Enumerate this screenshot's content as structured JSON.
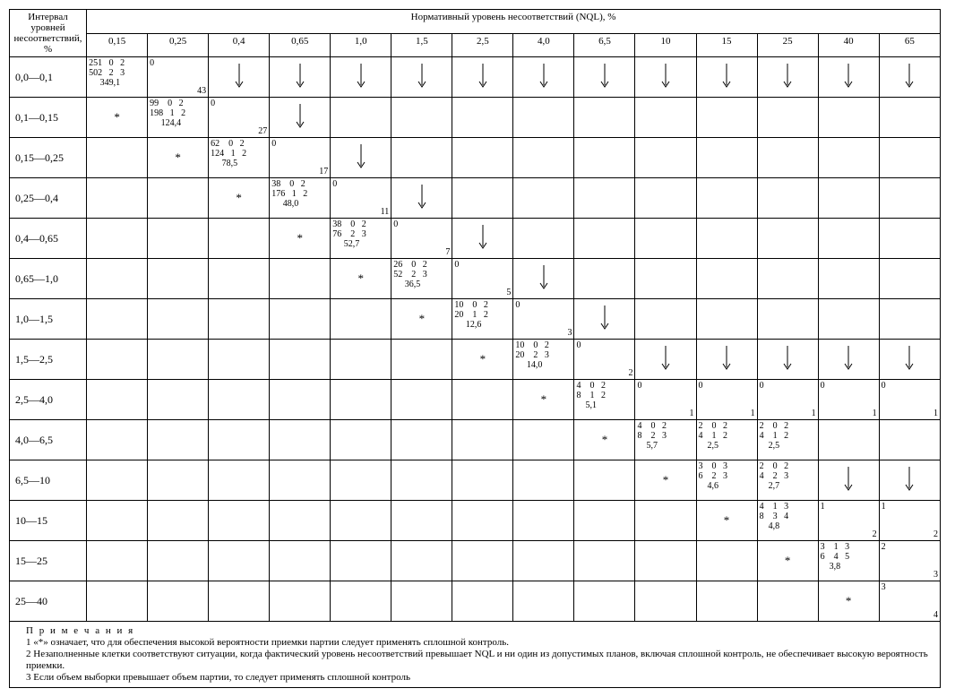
{
  "header": {
    "rowhead": "Интервал уровней несоответствий, %",
    "spanhead": "Нормативный   уровень  несоответствий  (NQL), %",
    "cols": [
      "0,15",
      "0,25",
      "0,4",
      "0,65",
      "1,0",
      "1,5",
      "2,5",
      "4,0",
      "6,5",
      "10",
      "15",
      "25",
      "40",
      "65"
    ]
  },
  "rows": [
    {
      "label": "0,0—0,1",
      "cells": [
        {
          "t": "block",
          "l1": "251   0   2",
          "l2": "502   2   3",
          "l3": "     349,1"
        },
        {
          "t": "zero_tr",
          "tr": "43"
        },
        {
          "t": "arr"
        },
        {
          "t": "arr"
        },
        {
          "t": "arr"
        },
        {
          "t": "arr"
        },
        {
          "t": "arr"
        },
        {
          "t": "arr"
        },
        {
          "t": "arr"
        },
        {
          "t": "arr"
        },
        {
          "t": "arr"
        },
        {
          "t": "arr"
        },
        {
          "t": "arr"
        },
        {
          "t": "arr"
        }
      ]
    },
    {
      "label": "0,1—0,15",
      "cells": [
        {
          "t": "star"
        },
        {
          "t": "block",
          "l1": "99    0   2",
          "l2": "198   1   2",
          "l3": "     124,4"
        },
        {
          "t": "zero_tr",
          "tr": "27"
        },
        {
          "t": "arr"
        },
        {
          "t": ""
        },
        {
          "t": ""
        },
        {
          "t": ""
        },
        {
          "t": ""
        },
        {
          "t": ""
        },
        {
          "t": ""
        },
        {
          "t": ""
        },
        {
          "t": ""
        },
        {
          "t": ""
        },
        {
          "t": ""
        }
      ]
    },
    {
      "label": "0,15—0,25",
      "cells": [
        {
          "t": ""
        },
        {
          "t": "star"
        },
        {
          "t": "block",
          "l1": "62    0   2",
          "l2": "124   1   2",
          "l3": "     78,5"
        },
        {
          "t": "zero_tr",
          "tr": "17"
        },
        {
          "t": "arr"
        },
        {
          "t": ""
        },
        {
          "t": ""
        },
        {
          "t": ""
        },
        {
          "t": ""
        },
        {
          "t": ""
        },
        {
          "t": ""
        },
        {
          "t": ""
        },
        {
          "t": ""
        },
        {
          "t": ""
        }
      ]
    },
    {
      "label": "0,25—0,4",
      "cells": [
        {
          "t": ""
        },
        {
          "t": ""
        },
        {
          "t": "star"
        },
        {
          "t": "block",
          "l1": "38    0   2",
          "l2": "176   1   2",
          "l3": "     48,0"
        },
        {
          "t": "zero_tr",
          "tr": "11"
        },
        {
          "t": "arr"
        },
        {
          "t": ""
        },
        {
          "t": ""
        },
        {
          "t": ""
        },
        {
          "t": ""
        },
        {
          "t": ""
        },
        {
          "t": ""
        },
        {
          "t": ""
        },
        {
          "t": ""
        }
      ]
    },
    {
      "label": "0,4—0,65",
      "cells": [
        {
          "t": ""
        },
        {
          "t": ""
        },
        {
          "t": ""
        },
        {
          "t": "star"
        },
        {
          "t": "block",
          "l1": "38    0   2",
          "l2": "76    2   3",
          "l3": "     52,7"
        },
        {
          "t": "zero_tr",
          "tr": "7"
        },
        {
          "t": "arr"
        },
        {
          "t": ""
        },
        {
          "t": ""
        },
        {
          "t": ""
        },
        {
          "t": ""
        },
        {
          "t": ""
        },
        {
          "t": ""
        },
        {
          "t": ""
        }
      ]
    },
    {
      "label": "0,65—1,0",
      "cells": [
        {
          "t": ""
        },
        {
          "t": ""
        },
        {
          "t": ""
        },
        {
          "t": ""
        },
        {
          "t": "star"
        },
        {
          "t": "block",
          "l1": "26    0   2",
          "l2": "52    2   3",
          "l3": "     36,5"
        },
        {
          "t": "zero_tr",
          "tr": "5"
        },
        {
          "t": "arr"
        },
        {
          "t": ""
        },
        {
          "t": ""
        },
        {
          "t": ""
        },
        {
          "t": ""
        },
        {
          "t": ""
        },
        {
          "t": ""
        }
      ]
    },
    {
      "label": "1,0—1,5",
      "cells": [
        {
          "t": ""
        },
        {
          "t": ""
        },
        {
          "t": ""
        },
        {
          "t": ""
        },
        {
          "t": ""
        },
        {
          "t": "star"
        },
        {
          "t": "block",
          "l1": "10    0   2",
          "l2": "20    1   2",
          "l3": "     12,6"
        },
        {
          "t": "zero_tr",
          "tr": "3"
        },
        {
          "t": "arr"
        },
        {
          "t": ""
        },
        {
          "t": ""
        },
        {
          "t": ""
        },
        {
          "t": ""
        },
        {
          "t": ""
        }
      ]
    },
    {
      "label": "1,5—2,5",
      "cells": [
        {
          "t": ""
        },
        {
          "t": ""
        },
        {
          "t": ""
        },
        {
          "t": ""
        },
        {
          "t": ""
        },
        {
          "t": ""
        },
        {
          "t": "star"
        },
        {
          "t": "block",
          "l1": "10    0   2",
          "l2": "20    2   3",
          "l3": "     14,0"
        },
        {
          "t": "zero_tr",
          "tr": "2"
        },
        {
          "t": "arr"
        },
        {
          "t": "arr"
        },
        {
          "t": "arr"
        },
        {
          "t": "arr"
        },
        {
          "t": "arr"
        }
      ]
    },
    {
      "label": "2,5—4,0",
      "cells": [
        {
          "t": ""
        },
        {
          "t": ""
        },
        {
          "t": ""
        },
        {
          "t": ""
        },
        {
          "t": ""
        },
        {
          "t": ""
        },
        {
          "t": ""
        },
        {
          "t": "star"
        },
        {
          "t": "block",
          "l1": "4    0   2",
          "l2": "8    1   2",
          "l3": "    5,1"
        },
        {
          "t": "zero_tr",
          "tr": "1"
        },
        {
          "t": "zero_tr",
          "tr": "1"
        },
        {
          "t": "zero_tr",
          "tr": "1"
        },
        {
          "t": "zero_tr",
          "tr": "1"
        },
        {
          "t": "zero_tr",
          "tr": "1"
        }
      ]
    },
    {
      "label": "4,0—6,5",
      "cells": [
        {
          "t": ""
        },
        {
          "t": ""
        },
        {
          "t": ""
        },
        {
          "t": ""
        },
        {
          "t": ""
        },
        {
          "t": ""
        },
        {
          "t": ""
        },
        {
          "t": ""
        },
        {
          "t": "star"
        },
        {
          "t": "block",
          "l1": "4    0   2",
          "l2": "8    2   3",
          "l3": "    5,7"
        },
        {
          "t": "block",
          "l1": "2    0   2",
          "l2": "4    1   2",
          "l3": "    2,5"
        },
        {
          "t": "block",
          "l1": "2    0   2",
          "l2": "4    1   2",
          "l3": "    2,5"
        },
        {
          "t": ""
        },
        {
          "t": ""
        }
      ]
    },
    {
      "label": "6,5—10",
      "cells": [
        {
          "t": ""
        },
        {
          "t": ""
        },
        {
          "t": ""
        },
        {
          "t": ""
        },
        {
          "t": ""
        },
        {
          "t": ""
        },
        {
          "t": ""
        },
        {
          "t": ""
        },
        {
          "t": ""
        },
        {
          "t": "star"
        },
        {
          "t": "block",
          "l1": "3    0   3",
          "l2": "6    2   3",
          "l3": "    4,6"
        },
        {
          "t": "block",
          "l1": "2    0   2",
          "l2": "4    2   3",
          "l3": "    2,7"
        },
        {
          "t": "arr"
        },
        {
          "t": "arr"
        }
      ]
    },
    {
      "label": "10—15",
      "cells": [
        {
          "t": ""
        },
        {
          "t": ""
        },
        {
          "t": ""
        },
        {
          "t": ""
        },
        {
          "t": ""
        },
        {
          "t": ""
        },
        {
          "t": ""
        },
        {
          "t": ""
        },
        {
          "t": ""
        },
        {
          "t": ""
        },
        {
          "t": "star"
        },
        {
          "t": "block",
          "l1": "4    1   3",
          "l2": "8    3   4",
          "l3": "    4,8"
        },
        {
          "t": "one_tr",
          "tl": "1",
          "tr": "2"
        },
        {
          "t": "one_tr",
          "tl": "1",
          "tr": "2"
        }
      ]
    },
    {
      "label": "15—25",
      "cells": [
        {
          "t": ""
        },
        {
          "t": ""
        },
        {
          "t": ""
        },
        {
          "t": ""
        },
        {
          "t": ""
        },
        {
          "t": ""
        },
        {
          "t": ""
        },
        {
          "t": ""
        },
        {
          "t": ""
        },
        {
          "t": ""
        },
        {
          "t": ""
        },
        {
          "t": "star"
        },
        {
          "t": "block",
          "l1": "3    1   3",
          "l2": "6    4   5",
          "l3": "    3,8"
        },
        {
          "t": "one_tr",
          "tl": "2",
          "tr": "3"
        }
      ]
    },
    {
      "label": "25—40",
      "cells": [
        {
          "t": ""
        },
        {
          "t": ""
        },
        {
          "t": ""
        },
        {
          "t": ""
        },
        {
          "t": ""
        },
        {
          "t": ""
        },
        {
          "t": ""
        },
        {
          "t": ""
        },
        {
          "t": ""
        },
        {
          "t": ""
        },
        {
          "t": ""
        },
        {
          "t": ""
        },
        {
          "t": "star"
        },
        {
          "t": "one_tr",
          "tl": "3",
          "tr": "4"
        }
      ]
    }
  ],
  "notes": {
    "title": "П р и м е ч а н и я",
    "n1": "1 «*» означает, что для обеспечения  высокой  вероятности  приемки   партии  следует применять сплошной контроль.",
    "n2": "2 Незаполненные клетки соответствуют ситуации, когда  фактический уровень  несоответствий превышает NQL и ни один из допустимых планов, включая сплошной контроль, не обеспечивает высокую вероятность приемки.",
    "n3": "3 Если объем выборки превышает объем партии, то следует применять сплошной контроль"
  },
  "style": {
    "arrow_svg_h": 30
  }
}
